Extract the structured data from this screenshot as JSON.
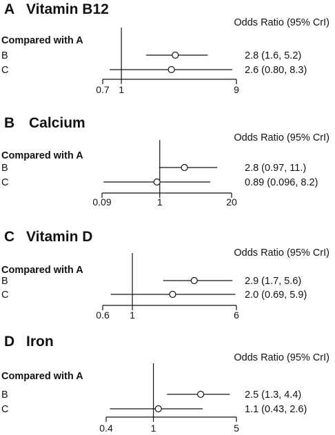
{
  "chart_data": [
    {
      "type": "forest",
      "letter": "A",
      "title": "Vitamin B12",
      "header": "Odds Ratio (95% CrI)",
      "comparison_label": "Compared with A",
      "scale": "log",
      "ticks": [
        0.7,
        1,
        9
      ],
      "tick_labels": [
        "0.7",
        "1",
        "9"
      ],
      "reference": 1,
      "rows": [
        {
          "label": "B",
          "estimate": 2.8,
          "lower": 1.6,
          "upper": 5.2,
          "text": "2.8 (1.6, 5.2)"
        },
        {
          "label": "C",
          "estimate": 2.6,
          "lower": 0.8,
          "upper": 8.3,
          "text": "2.6 (0.80, 8.3)"
        }
      ]
    },
    {
      "type": "forest",
      "letter": "B",
      "title": "Calcium",
      "header": "Odds Ratio (95% CrI)",
      "comparison_label": "Compared with A",
      "scale": "log",
      "ticks": [
        0.09,
        1,
        20
      ],
      "tick_labels": [
        "0.09",
        "1",
        "20"
      ],
      "reference": 1,
      "rows": [
        {
          "label": "B",
          "estimate": 2.8,
          "lower": 0.97,
          "upper": 11,
          "text": "2.8 (0.97, 11.)"
        },
        {
          "label": "C",
          "estimate": 0.89,
          "lower": 0.096,
          "upper": 8.2,
          "text": "0.89 (0.096, 8.2)"
        }
      ]
    },
    {
      "type": "forest",
      "letter": "C",
      "title": "Vitamin D",
      "header": "Odds Ratio (95% CrI)",
      "comparison_label": "Compared with A",
      "scale": "log",
      "ticks": [
        0.6,
        1,
        6
      ],
      "tick_labels": [
        "0.6",
        "1",
        "6"
      ],
      "reference": 1,
      "rows": [
        {
          "label": "B",
          "estimate": 2.9,
          "lower": 1.7,
          "upper": 5.6,
          "text": "2.9 (1.7, 5.6)"
        },
        {
          "label": "C",
          "estimate": 2.0,
          "lower": 0.69,
          "upper": 5.9,
          "text": "2.0 (0.69, 5.9)"
        }
      ]
    },
    {
      "type": "forest",
      "letter": "D",
      "title": "Iron",
      "header": "Odds Ratio (95% CrI)",
      "comparison_label": "Compared with A",
      "scale": "log",
      "ticks": [
        0.4,
        1,
        5
      ],
      "tick_labels": [
        "0.4",
        "1",
        "5"
      ],
      "reference": 1,
      "rows": [
        {
          "label": "B",
          "estimate": 2.5,
          "lower": 1.3,
          "upper": 4.4,
          "text": "2.5 (1.3, 4.4)"
        },
        {
          "label": "C",
          "estimate": 1.1,
          "lower": 0.43,
          "upper": 2.6,
          "text": "1.1 (0.43, 2.6)"
        }
      ]
    }
  ]
}
